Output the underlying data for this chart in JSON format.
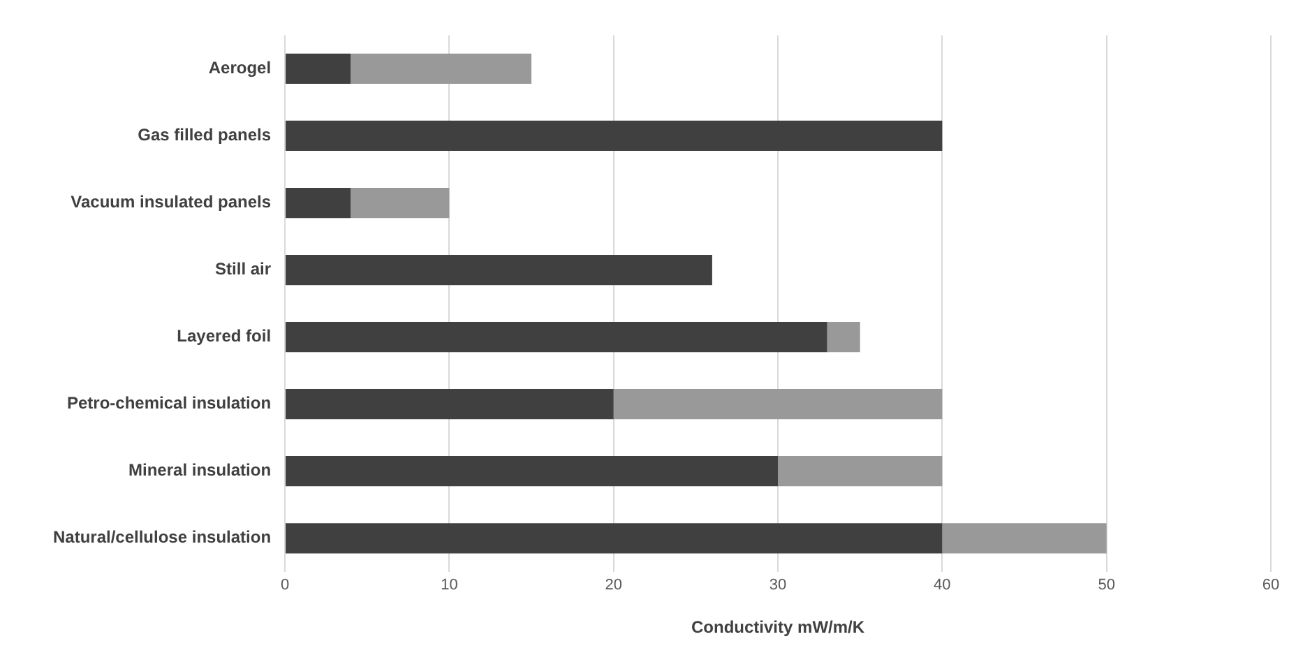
{
  "chart_data": {
    "type": "bar",
    "orientation": "horizontal",
    "stacked": true,
    "xlabel": "Conductivity mW/m/K",
    "categories": [
      "Aerogel",
      "Gas filled panels",
      "Vacuum insulated panels",
      "Still air",
      "Layered foil",
      "Petro-chemical insulation",
      "Mineral insulation",
      "Natural/cellulose insulation"
    ],
    "series": [
      {
        "color": "#404040",
        "values": [
          4,
          40,
          4,
          26,
          33,
          20,
          30,
          40
        ]
      },
      {
        "color": "#999999",
        "values": [
          11,
          null,
          6,
          null,
          2,
          20,
          10,
          10
        ]
      }
    ],
    "xlim": [
      0,
      60
    ],
    "xticks": [
      0,
      10,
      20,
      30,
      40,
      50,
      60
    ],
    "grid": "x",
    "legend": false
  }
}
